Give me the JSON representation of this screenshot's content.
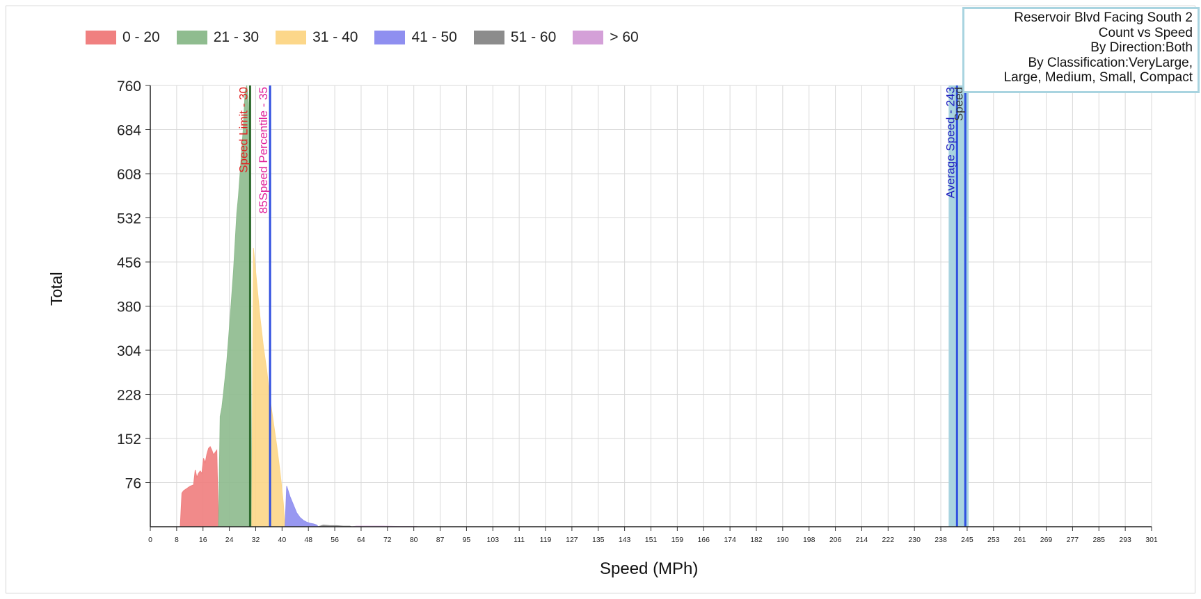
{
  "title_box": {
    "line1": "Reservoir Blvd Facing South 2",
    "line2": "Count vs Speed",
    "line3": "By Direction:Both",
    "line4": "By Classification:VeryLarge,",
    "line5": "Large, Medium, Small, Compact"
  },
  "legend": [
    {
      "label": "0 - 20",
      "color": "#f08080"
    },
    {
      "label": "21 - 30",
      "color": "#8fbc8f"
    },
    {
      "label": "31 - 40",
      "color": "#fcd78a"
    },
    {
      "label": "41 - 50",
      "color": "#8f8ff0"
    },
    {
      "label": "51 - 60",
      "color": "#8c8c8c"
    },
    {
      "label": "> 60",
      "color": "#d4a0d8"
    }
  ],
  "chart_data": {
    "type": "area",
    "title": "Count vs Speed",
    "xlabel": "Speed (MPh)",
    "ylabel": "Total",
    "xlim": [
      0,
      301
    ],
    "ylim": [
      0,
      760
    ],
    "x_ticks": [
      "0",
      "8",
      "16",
      "24",
      "32",
      "40",
      "48",
      "56",
      "64",
      "72",
      "80",
      "87",
      "95",
      "103",
      "111",
      "119",
      "127",
      "135",
      "143",
      "151",
      "159",
      "166",
      "174",
      "182",
      "190",
      "198",
      "206",
      "214",
      "222",
      "230",
      "238",
      "245",
      "253",
      "261",
      "269",
      "277",
      "285",
      "293",
      "301"
    ],
    "y_ticks": [
      "76",
      "152",
      "228",
      "304",
      "380",
      "456",
      "532",
      "608",
      "684",
      "760"
    ],
    "grid": true,
    "legend_position": "top-left",
    "series": [
      {
        "name": "0 - 20",
        "color": "#f08080",
        "x": [
          9,
          9.5,
          10,
          11,
          12,
          13,
          13.5,
          14,
          14.5,
          15,
          15.5,
          16,
          16.5,
          17,
          17.5,
          18,
          18.5,
          19,
          19.5,
          20,
          20.5
        ],
        "values": [
          0,
          58,
          62,
          66,
          70,
          72,
          98,
          85,
          92,
          96,
          92,
          118,
          110,
          125,
          135,
          138,
          132,
          124,
          128,
          132,
          0
        ]
      },
      {
        "name": "21 - 30",
        "color": "#8fbc8f",
        "x": [
          20.5,
          21,
          21.5,
          22,
          23,
          24,
          25,
          26,
          26.5,
          27,
          27.5,
          28,
          28.5,
          29,
          29.5,
          30,
          30.5
        ],
        "values": [
          0,
          190,
          205,
          230,
          285,
          360,
          440,
          540,
          570,
          610,
          650,
          690,
          750,
          760,
          730,
          650,
          0
        ]
      },
      {
        "name": "31 - 40",
        "color": "#fcd78a",
        "x": [
          30.5,
          31,
          32,
          33,
          34,
          35,
          36,
          37,
          38,
          39,
          40,
          40.5
        ],
        "values": [
          0,
          480,
          420,
          360,
          310,
          270,
          220,
          180,
          140,
          95,
          40,
          0
        ]
      },
      {
        "name": "41 - 50",
        "color": "#8f8ff0",
        "x": [
          40.5,
          41,
          42,
          43,
          44,
          45,
          46,
          47,
          48,
          49,
          50,
          50.5
        ],
        "values": [
          0,
          70,
          52,
          38,
          24,
          16,
          11,
          8,
          6,
          5,
          3,
          0
        ]
      },
      {
        "name": "51 - 60",
        "color": "#8c8c8c",
        "x": [
          50.5,
          52,
          54,
          56,
          58,
          60,
          60.5
        ],
        "values": [
          0,
          3,
          2,
          2,
          1,
          1,
          0
        ]
      },
      {
        "name": "> 60",
        "color": "#d4a0d8",
        "x": [
          60.5,
          62,
          66,
          70,
          75,
          80,
          80.5
        ],
        "values": [
          0,
          1,
          1,
          1,
          0.5,
          0.5,
          0
        ]
      }
    ],
    "annotations": [
      {
        "label": "Speed Limit - 30",
        "x": 30,
        "line_color": "#2d6a2d",
        "text_color": "#e02020"
      },
      {
        "label": "85Speed Percentile - 35",
        "x": 36,
        "line_color": "#3050e0",
        "text_color": "#e0209a"
      },
      {
        "label": "Average Speed - 243",
        "x": 242.5,
        "line_color": "#3050e0",
        "text_color": "#2020c0",
        "band": [
          240,
          246
        ],
        "band_color": "#a9d4e0"
      },
      {
        "label": "Speed",
        "x": 245,
        "line_color": "#3050e0",
        "text_color": "#333333"
      }
    ]
  }
}
